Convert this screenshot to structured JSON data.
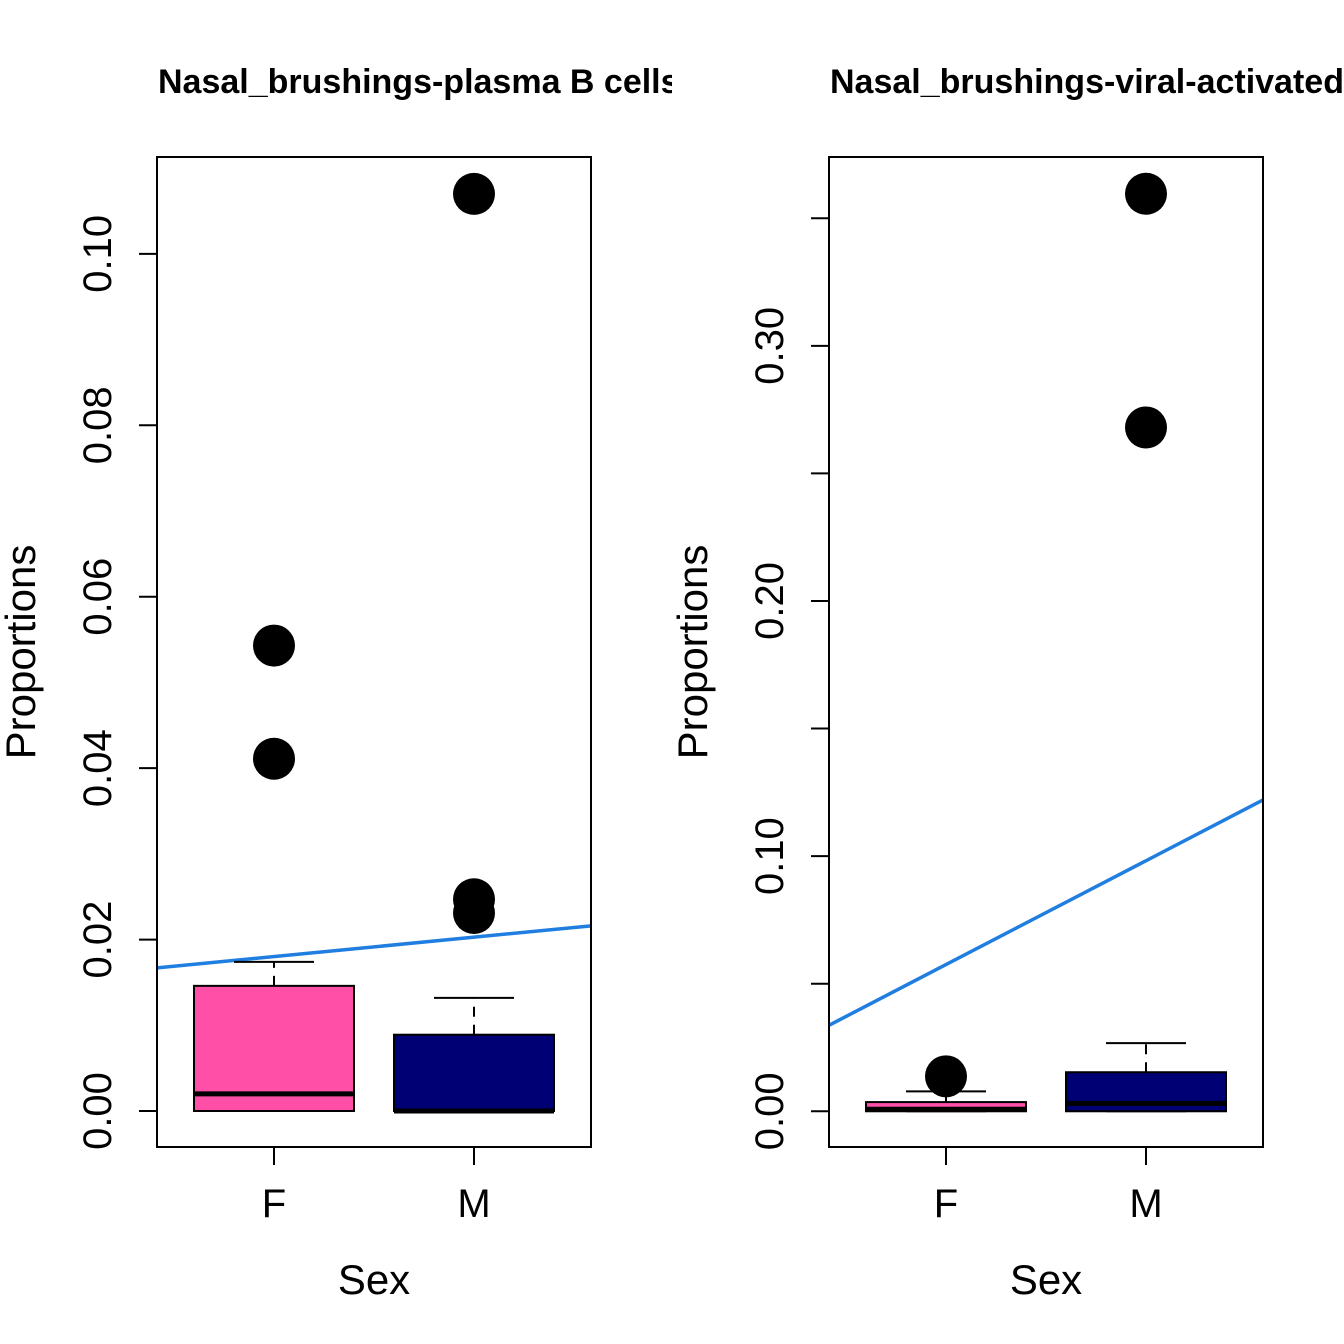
{
  "chart_data": [
    {
      "type": "box",
      "title": "Nasal_brushings-plasma B cells",
      "xlabel": "Sex",
      "ylabel": "Proportions",
      "categories": [
        "F",
        "M"
      ],
      "ylim": [
        -0.0042,
        0.1113
      ],
      "yticks": [
        0.0,
        0.02,
        0.04,
        0.06,
        0.08,
        0.1
      ],
      "ytick_labels": [
        "0.00",
        "0.02",
        "0.04",
        "0.06",
        "0.08",
        "0.10"
      ],
      "boxes": [
        {
          "category": "F",
          "fill": "#FF4FA7",
          "lower_whisker": 0,
          "q1": 0,
          "median": 0.002,
          "q3": 0.0146,
          "upper_whisker": 0.0174,
          "outliers": [
            0.0543,
            0.0411
          ]
        },
        {
          "category": "M",
          "fill": "#000075",
          "lower_whisker": 0,
          "q1": 0,
          "median": 0.0,
          "q3": 0.0089,
          "upper_whisker": 0.0132,
          "outliers": [
            0.107,
            0.0247,
            0.0231
          ]
        }
      ],
      "trend_line": {
        "color": "#1F7EE0",
        "y_at_left_edge": 0.0167,
        "y_at_right_edge": 0.0216
      }
    },
    {
      "type": "box",
      "title": "Nasal_brushings-viral-activated",
      "xlabel": "Sex",
      "ylabel": "Proportions",
      "categories": [
        "F",
        "M"
      ],
      "ylim": [
        -0.014,
        0.374
      ],
      "yticks": [
        0.0,
        0.05,
        0.1,
        0.15,
        0.2,
        0.25,
        0.3,
        0.35
      ],
      "ytick_labels": [
        "0.00",
        "",
        "0.10",
        "",
        "0.20",
        "",
        "0.30",
        ""
      ],
      "boxes": [
        {
          "category": "F",
          "fill": "#FF4FA7",
          "lower_whisker": 0,
          "q1": 0,
          "median": 0.0008,
          "q3": 0.0036,
          "upper_whisker": 0.0078,
          "outliers": [
            0.0137
          ]
        },
        {
          "category": "M",
          "fill": "#000075",
          "lower_whisker": 0,
          "q1": 0,
          "median": 0.0031,
          "q3": 0.0153,
          "upper_whisker": 0.0267,
          "outliers": [
            0.3596,
            0.268
          ]
        }
      ],
      "trend_line": {
        "color": "#1F7EE0",
        "y_at_left_edge": 0.0337,
        "y_at_right_edge": 0.122
      }
    }
  ]
}
